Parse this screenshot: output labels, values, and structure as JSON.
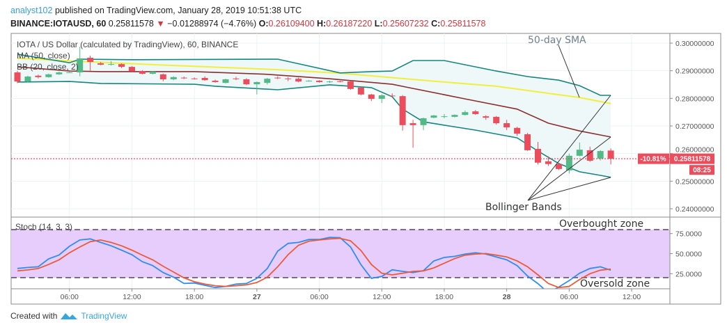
{
  "header": {
    "author": "analyst102",
    "published": " published on TradingView.com, January 28, 2019 10:51:38 UTC",
    "symbol": "BINANCE:IOTAUSD, 60",
    "last": "0.25811578",
    "change_arrow": "▼",
    "change": "−0.01288974 (−4.76%)",
    "o_label": "O:",
    "o": "0.26109400",
    "h_label": "H:",
    "h": "0.26187220",
    "l_label": "L:",
    "l": "0.25607232",
    "c_label": "C:",
    "c": "0.25811578"
  },
  "legend": {
    "title": "IOTA / US Dollar (calculated by TradingView), 60, BINANCE",
    "ma": "MA (50, close)",
    "bb": "BB (20, close, 2)",
    "stoch": "Stoch (14, 3, 3)"
  },
  "annotations": {
    "sma": "50-day SMA",
    "bb": "Bollinger Bands",
    "overbought": "Overbought zone",
    "oversold": "Oversold zone"
  },
  "price_label": {
    "change_pct": "-10.81%",
    "price": "0.25811578",
    "countdown": "08:25"
  },
  "footer": {
    "created": "Created with",
    "brand": "TradingView"
  },
  "colors": {
    "up": "#53b987",
    "down": "#eb4d5c",
    "ma50": "#f2ee3a",
    "bb_basis": "#8b2e2e",
    "bb_band": "#17857f",
    "bb_fill": "#eef8f8",
    "stoch_k": "#2f8cf0",
    "stoch_d": "#ec5a3a",
    "stoch_fill": "#e6cdfb",
    "stoch_dash": "#7d6a86",
    "grid": "#eef1f5",
    "price_line": "#eb4d5c"
  },
  "chart_data": [
    {
      "type": "candlestick",
      "title": "IOTA / US Dollar (calculated by TradingView), 60, BINANCE",
      "interval_minutes": 60,
      "ylim": [
        0.236,
        0.3035
      ],
      "y_ticks": [
        "0.30000000",
        "0.29000000",
        "0.28000000",
        "0.27000000",
        "0.26000000",
        "0.25000000",
        "0.24000000"
      ],
      "y_tick_values": [
        0.3,
        0.29,
        0.28,
        0.27,
        0.26,
        0.25,
        0.24
      ],
      "x_ticks": [
        {
          "label": "06:00",
          "time": "2019-01-26 06:00"
        },
        {
          "label": "12:00",
          "time": "2019-01-26 12:00"
        },
        {
          "label": "18:00",
          "time": "2019-01-26 18:00"
        },
        {
          "label": "27",
          "time": "2019-01-27 00:00"
        },
        {
          "label": "06:00",
          "time": "2019-01-27 06:00"
        },
        {
          "label": "12:00",
          "time": "2019-01-27 12:00"
        },
        {
          "label": "18:00",
          "time": "2019-01-27 18:00"
        },
        {
          "label": "28",
          "time": "2019-01-28 00:00"
        },
        {
          "label": "06:00",
          "time": "2019-01-28 06:00"
        },
        {
          "label": "12:00",
          "time": "2019-01-28 12:00"
        }
      ],
      "grid": true,
      "candles_ohlc": [
        [
          "2019-01-26 01:00",
          0.2894,
          0.29,
          0.2855,
          0.2861
        ],
        [
          "2019-01-26 02:00",
          0.2861,
          0.2882,
          0.2858,
          0.2879
        ],
        [
          "2019-01-26 03:00",
          0.2882,
          0.2886,
          0.2872,
          0.2877
        ],
        [
          "2019-01-26 04:00",
          0.2877,
          0.289,
          0.2875,
          0.2887
        ],
        [
          "2019-01-26 05:00",
          0.2887,
          0.2897,
          0.2885,
          0.2894
        ],
        [
          "2019-01-26 06:00",
          0.2894,
          0.2896,
          0.2892,
          0.2894
        ],
        [
          "2019-01-26 07:00",
          0.2894,
          0.2987,
          0.288,
          0.2945
        ],
        [
          "2019-01-26 08:00",
          0.2947,
          0.2955,
          0.29,
          0.2932
        ],
        [
          "2019-01-26 09:00",
          0.2927,
          0.2932,
          0.292,
          0.2922
        ],
        [
          "2019-01-26 10:00",
          0.2924,
          0.2935,
          0.2919,
          0.2924
        ],
        [
          "2019-01-26 11:00",
          0.2924,
          0.2927,
          0.291,
          0.2914
        ],
        [
          "2019-01-26 12:00",
          0.2914,
          0.2917,
          0.2897,
          0.2899
        ],
        [
          "2019-01-26 13:00",
          0.2899,
          0.2902,
          0.2887,
          0.2889
        ],
        [
          "2019-01-26 14:00",
          0.2889,
          0.2899,
          0.2887,
          0.2897
        ],
        [
          "2019-01-26 15:00",
          0.2887,
          0.289,
          0.2862,
          0.2869
        ],
        [
          "2019-01-26 16:00",
          0.2869,
          0.288,
          0.2866,
          0.2877
        ],
        [
          "2019-01-26 17:00",
          0.2875,
          0.2879,
          0.287,
          0.2874
        ],
        [
          "2019-01-26 18:00",
          0.2872,
          0.2876,
          0.2868,
          0.2871
        ],
        [
          "2019-01-26 19:00",
          0.2874,
          0.288,
          0.2864,
          0.2866
        ],
        [
          "2019-01-26 20:00",
          0.2864,
          0.2868,
          0.2857,
          0.2859
        ],
        [
          "2019-01-26 21:00",
          0.2856,
          0.2871,
          0.2854,
          0.2869
        ],
        [
          "2019-01-26 22:00",
          0.2872,
          0.2878,
          0.2866,
          0.2871
        ],
        [
          "2019-01-26 23:00",
          0.2869,
          0.2873,
          0.2848,
          0.2851
        ],
        [
          "2019-01-27 00:00",
          0.2851,
          0.2861,
          0.2814,
          0.2859
        ],
        [
          "2019-01-27 01:00",
          0.2856,
          0.2874,
          0.285,
          0.2871
        ],
        [
          "2019-01-27 02:00",
          0.2875,
          0.288,
          0.287,
          0.2874
        ],
        [
          "2019-01-27 03:00",
          0.2872,
          0.2877,
          0.2862,
          0.2871
        ],
        [
          "2019-01-27 04:00",
          0.2871,
          0.2875,
          0.2858,
          0.2861
        ],
        [
          "2019-01-27 05:00",
          0.2863,
          0.2866,
          0.2861,
          0.2864
        ],
        [
          "2019-01-27 06:00",
          0.2864,
          0.2866,
          0.2857,
          0.2859
        ],
        [
          "2019-01-27 07:00",
          0.2861,
          0.2864,
          0.2856,
          0.2861
        ],
        [
          "2019-01-27 08:00",
          0.2862,
          0.2864,
          0.2858,
          0.2861
        ],
        [
          "2019-01-27 09:00",
          0.2861,
          0.2864,
          0.2831,
          0.2834
        ],
        [
          "2019-01-27 10:00",
          0.2839,
          0.2842,
          0.2811,
          0.2814
        ],
        [
          "2019-01-27 11:00",
          0.2814,
          0.2816,
          0.279,
          0.2798
        ],
        [
          "2019-01-27 12:00",
          0.2798,
          0.2815,
          0.2783,
          0.2811
        ],
        [
          "2019-01-27 13:00",
          0.281,
          0.2818,
          0.2805,
          0.2808
        ],
        [
          "2019-01-27 14:00",
          0.2808,
          0.2812,
          0.2683,
          0.2703
        ],
        [
          "2019-01-27 15:00",
          0.271,
          0.2722,
          0.2621,
          0.2703
        ],
        [
          "2019-01-27 16:00",
          0.2703,
          0.273,
          0.2685,
          0.2728
        ],
        [
          "2019-01-27 17:00",
          0.273,
          0.274,
          0.2728,
          0.2738
        ],
        [
          "2019-01-27 18:00",
          0.2735,
          0.2743,
          0.2728,
          0.2735
        ],
        [
          "2019-01-27 19:00",
          0.2733,
          0.2742,
          0.2731,
          0.274
        ],
        [
          "2019-01-27 20:00",
          0.274,
          0.2756,
          0.2738,
          0.275
        ],
        [
          "2019-01-27 21:00",
          0.2753,
          0.2758,
          0.274,
          0.2743
        ],
        [
          "2019-01-27 22:00",
          0.2735,
          0.2739,
          0.2722,
          0.273
        ],
        [
          "2019-01-27 23:00",
          0.2733,
          0.2736,
          0.2705,
          0.271
        ],
        [
          "2019-01-28 00:00",
          0.271,
          0.2722,
          0.2685,
          0.2695
        ],
        [
          "2019-01-28 01:00",
          0.2693,
          0.2697,
          0.2664,
          0.2672
        ],
        [
          "2019-01-28 02:00",
          0.267,
          0.2675,
          0.261,
          0.2612
        ],
        [
          "2019-01-28 03:00",
          0.2617,
          0.2642,
          0.256,
          0.2567
        ],
        [
          "2019-01-28 04:00",
          0.2572,
          0.259,
          0.2555,
          0.2562
        ],
        [
          "2019-01-28 05:00",
          0.2562,
          0.2566,
          0.254,
          0.2544
        ],
        [
          "2019-01-28 06:00",
          0.2539,
          0.26,
          0.2528,
          0.2592
        ],
        [
          "2019-01-28 07:00",
          0.2592,
          0.264,
          0.259,
          0.2614
        ],
        [
          "2019-01-28 08:00",
          0.2612,
          0.2625,
          0.257,
          0.2574
        ],
        [
          "2019-01-28 09:00",
          0.2582,
          0.2612,
          0.2575,
          0.2609
        ],
        [
          "2019-01-28 10:00",
          0.26109,
          0.26187,
          0.25607,
          0.25812
        ]
      ],
      "lines": [
        {
          "name": "MA (50, close)",
          "color_key": "ma50",
          "points": [
            [
              "2019-01-26 01:00",
              0.2945
            ],
            [
              "2019-01-26 07:00",
              0.2934
            ],
            [
              "2019-01-26 14:00",
              0.2922
            ],
            [
              "2019-01-27 02:00",
              0.2904
            ],
            [
              "2019-01-27 08:00",
              0.2891
            ],
            [
              "2019-01-27 18:00",
              0.2859
            ],
            [
              "2019-01-27 23:00",
              0.2844
            ],
            [
              "2019-01-28 07:00",
              0.2803
            ],
            [
              "2019-01-28 10:00",
              0.2781
            ]
          ]
        },
        {
          "name": "BB basis",
          "color_key": "bb_basis",
          "points": [
            [
              "2019-01-26 01:00",
              0.2914
            ],
            [
              "2019-01-26 06:00",
              0.2899
            ],
            [
              "2019-01-26 09:00",
              0.2897
            ],
            [
              "2019-01-26 18:00",
              0.2897
            ],
            [
              "2019-01-27 01:00",
              0.2887
            ],
            [
              "2019-01-27 07:00",
              0.2871
            ],
            [
              "2019-01-27 13:00",
              0.2851
            ],
            [
              "2019-01-27 15:00",
              0.2836
            ],
            [
              "2019-01-27 20:00",
              0.2798
            ],
            [
              "2019-01-28 01:00",
              0.2761
            ],
            [
              "2019-01-28 04:00",
              0.271
            ],
            [
              "2019-01-28 07:00",
              0.2682
            ],
            [
              "2019-01-28 10:00",
              0.266
            ]
          ]
        },
        {
          "name": "BB upper",
          "color_key": "bb_band",
          "points": [
            [
              "2019-01-26 01:00",
              0.296
            ],
            [
              "2019-01-26 06:00",
              0.2929
            ],
            [
              "2019-01-26 07:00",
              0.2942
            ],
            [
              "2019-01-26 12:00",
              0.294
            ],
            [
              "2019-01-27 02:00",
              0.2942
            ],
            [
              "2019-01-27 08:00",
              0.2892
            ],
            [
              "2019-01-27 11:00",
              0.2897
            ],
            [
              "2019-01-27 13:00",
              0.2899
            ],
            [
              "2019-01-27 15:00",
              0.2937
            ],
            [
              "2019-01-27 18:00",
              0.2937
            ],
            [
              "2019-01-27 23:00",
              0.2899
            ],
            [
              "2019-01-28 02:00",
              0.2879
            ],
            [
              "2019-01-28 05:00",
              0.2866
            ],
            [
              "2019-01-28 07:00",
              0.2846
            ],
            [
              "2019-01-28 09:00",
              0.2811
            ],
            [
              "2019-01-28 10:00",
              0.2811
            ]
          ]
        },
        {
          "name": "BB lower",
          "color_key": "bb_band",
          "points": [
            [
              "2019-01-26 01:00",
              0.2859
            ],
            [
              "2019-01-26 06:00",
              0.2861
            ],
            [
              "2019-01-26 09:00",
              0.2854
            ],
            [
              "2019-01-26 18:00",
              0.2851
            ],
            [
              "2019-01-26 20:00",
              0.2844
            ],
            [
              "2019-01-27 02:00",
              0.2831
            ],
            [
              "2019-01-27 07:00",
              0.2849
            ],
            [
              "2019-01-27 09:00",
              0.2844
            ],
            [
              "2019-01-27 11:00",
              0.2839
            ],
            [
              "2019-01-27 13:00",
              0.2806
            ],
            [
              "2019-01-27 14:00",
              0.2761
            ],
            [
              "2019-01-27 16:00",
              0.2715
            ],
            [
              "2019-01-27 21:00",
              0.2685
            ],
            [
              "2019-01-28 01:00",
              0.2657
            ],
            [
              "2019-01-28 03:00",
              0.2609
            ],
            [
              "2019-01-28 05:00",
              0.2564
            ],
            [
              "2019-01-28 07:00",
              0.2534
            ],
            [
              "2019-01-28 09:00",
              0.2521
            ],
            [
              "2019-01-28 10:00",
              0.2514
            ]
          ]
        }
      ],
      "current_price": 0.25811578
    },
    {
      "type": "line",
      "title": "Stoch (14, 3, 3)",
      "ylim": [
        6,
        92
      ],
      "y_ticks": [
        "75.0000",
        "50.0000",
        "25.0000"
      ],
      "y_tick_values": [
        75,
        50,
        25
      ],
      "bands": [
        80,
        20
      ],
      "series": [
        {
          "color_key": "stoch_k",
          "values": [
            31.5,
            32.7,
            33.6,
            43.5,
            48.3,
            59.2,
            67,
            68.4,
            64,
            59.8,
            54.3,
            48.7,
            39.9,
            35.1,
            26.4,
            20.7,
            12.8,
            13.4,
            10.5,
            7.7,
            9.1,
            12,
            12.8,
            19.2,
            31.4,
            53.1,
            62.8,
            64,
            67.6,
            67.6,
            70.3,
            69.9,
            58.3,
            36.3,
            19.2,
            21.5,
            29.9,
            27.9,
            26.4,
            28.7,
            40.9,
            45.2,
            46.6,
            49.5,
            51,
            49.5,
            45.9,
            42.3,
            35.1,
            22.1,
            12.6,
            1,
            8.3,
            16.3,
            25.5,
            31.5,
            33.6,
            29.3
          ]
        },
        {
          "color_key": "stoch_d",
          "values": [
            28.5,
            29.7,
            31.4,
            36.5,
            42.3,
            51,
            58.3,
            64.9,
            67,
            64,
            59.8,
            54.3,
            48.1,
            42.3,
            34.3,
            27,
            19.8,
            14.9,
            12,
            10,
            9.1,
            10,
            11,
            14,
            20.7,
            33.7,
            48.7,
            60.4,
            65.5,
            67,
            68.4,
            69.1,
            66,
            53.9,
            36.5,
            25.5,
            23.5,
            25.5,
            27.9,
            28.5,
            32.2,
            38,
            43.8,
            48.1,
            49.5,
            50.1,
            48.1,
            45.9,
            40.9,
            33.7,
            23.5,
            12.8,
            7.7,
            9.1,
            17.8,
            25,
            29.3,
            30.8
          ]
        }
      ]
    }
  ]
}
